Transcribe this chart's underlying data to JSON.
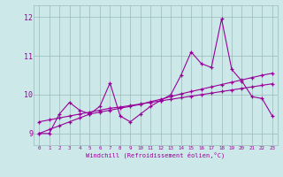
{
  "x": [
    0,
    1,
    2,
    3,
    4,
    5,
    6,
    7,
    8,
    9,
    10,
    11,
    12,
    13,
    14,
    15,
    16,
    17,
    18,
    19,
    20,
    21,
    22,
    23
  ],
  "line1": [
    9.0,
    9.0,
    9.5,
    9.8,
    9.6,
    9.5,
    9.7,
    10.3,
    9.45,
    9.3,
    9.5,
    9.7,
    9.85,
    10.0,
    10.5,
    11.1,
    10.8,
    10.7,
    11.95,
    10.65,
    10.35,
    9.95,
    9.9,
    9.45
  ],
  "line2_trend1": [
    9.0,
    9.1,
    9.2,
    9.3,
    9.4,
    9.5,
    9.55,
    9.6,
    9.65,
    9.7,
    9.75,
    9.82,
    9.88,
    9.95,
    10.02,
    10.08,
    10.14,
    10.2,
    10.26,
    10.32,
    10.38,
    10.44,
    10.5,
    10.55
  ],
  "line3_trend2": [
    9.3,
    9.35,
    9.4,
    9.45,
    9.5,
    9.55,
    9.6,
    9.65,
    9.68,
    9.72,
    9.76,
    9.8,
    9.84,
    9.88,
    9.92,
    9.96,
    10.0,
    10.04,
    10.08,
    10.12,
    10.16,
    10.2,
    10.24,
    10.28
  ],
  "bg_color": "#cce8e8",
  "line_color": "#990099",
  "grid_color": "#99bbbb",
  "ylabel_left": [
    "9",
    "10",
    "11",
    "12"
  ],
  "yticks": [
    9,
    10,
    11,
    12
  ],
  "xlim": [
    -0.5,
    23.5
  ],
  "ylim": [
    8.7,
    12.3
  ],
  "xlabel": "Windchill (Refroidissement éolien,°C)"
}
